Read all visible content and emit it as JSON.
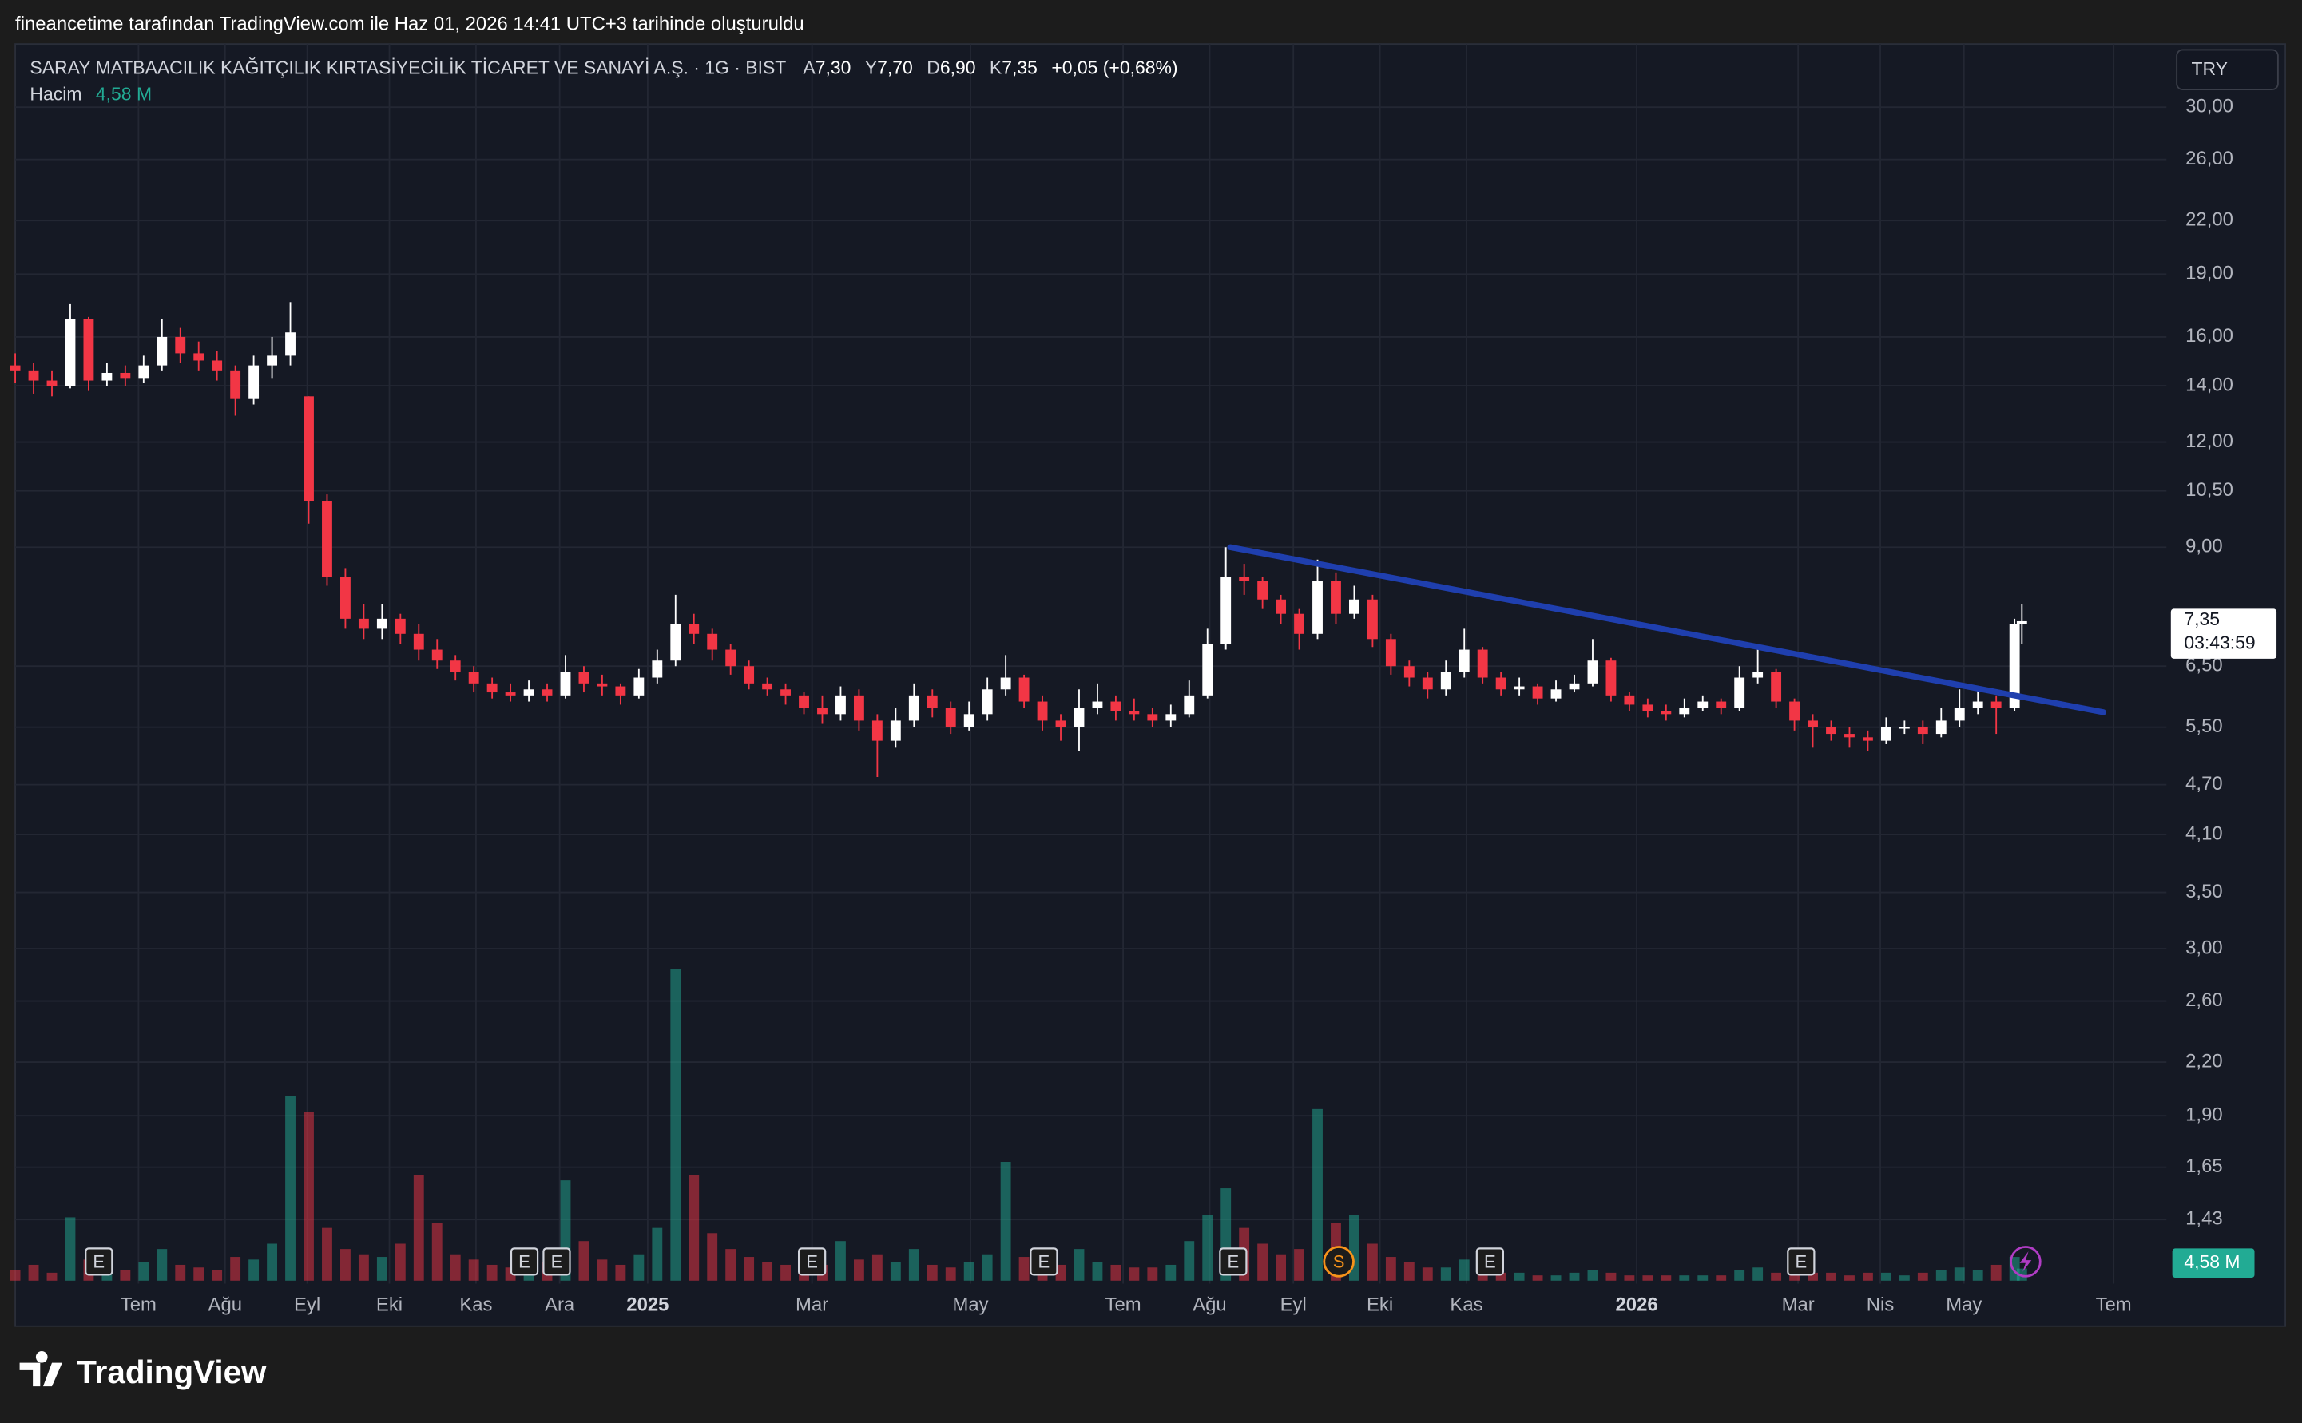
{
  "caption": "fineancetime tarafından TradingView.com ile Haz 01, 2026 14:41 UTC+3 tarihinde oluşturuldu",
  "brand": "TradingView",
  "chart_data": {
    "type": "candlestick",
    "title": "SARAY MATBAACILIK KAĞITÇILIK KIRTASİYECİLİK TİCARET VE SANAYİ A.Ş. · 1G · BIST",
    "legend": [
      {
        "key": "A",
        "value": "7,30"
      },
      {
        "key": "Y",
        "value": "7,70"
      },
      {
        "key": "D",
        "value": "6,90"
      },
      {
        "key": "K",
        "value": "7,35"
      }
    ],
    "change": "+0,05 (+0,68%)",
    "volume_title": "Hacim",
    "volume_label": "4,58 M",
    "currency": "TRY",
    "countdown": "03:43:59",
    "log_scale": true,
    "grid": true,
    "up_color": "#ffffff",
    "down_color": "#f23645",
    "volume_up_color": "#22ab94",
    "volume_down_color": "#f23645",
    "xlim": [
      0,
      586.4
    ],
    "ylim": [
      1.2,
      35.66
    ],
    "vlim": [
      0,
      150
    ],
    "xticks": [
      {
        "value": 33.6,
        "label": "Tem"
      },
      {
        "value": 57.2,
        "label": "Ağu"
      },
      {
        "value": 79.6,
        "label": "Eyl"
      },
      {
        "value": 102,
        "label": "Eki"
      },
      {
        "value": 125.6,
        "label": "Kas"
      },
      {
        "value": 148.4,
        "label": "Ara"
      },
      {
        "value": 172.4,
        "label": "2025"
      },
      {
        "value": 217.2,
        "label": "Mar"
      },
      {
        "value": 260.4,
        "label": "May"
      },
      {
        "value": 302,
        "label": "Tem"
      },
      {
        "value": 325.6,
        "label": "Ağu"
      },
      {
        "value": 348.4,
        "label": "Eyl"
      },
      {
        "value": 372,
        "label": "Eki"
      },
      {
        "value": 395.6,
        "label": "Kas"
      },
      {
        "value": 442,
        "label": "2026"
      },
      {
        "value": 486,
        "label": "Mar"
      },
      {
        "value": 508.4,
        "label": "Nis"
      },
      {
        "value": 531.2,
        "label": "May"
      },
      {
        "value": 572,
        "label": "Tem"
      }
    ],
    "yticks": [
      {
        "value": 30,
        "label": "30,00"
      },
      {
        "value": 26,
        "label": "26,00"
      },
      {
        "value": 22,
        "label": "22,00"
      },
      {
        "value": 19,
        "label": "19,00"
      },
      {
        "value": 16,
        "label": "16,00"
      },
      {
        "value": 14,
        "label": "14,00"
      },
      {
        "value": 12,
        "label": "12,00"
      },
      {
        "value": 10.5,
        "label": "10,50"
      },
      {
        "value": 9,
        "label": "9,00"
      },
      {
        "value": 6.5,
        "label": "6,50"
      },
      {
        "value": 5.5,
        "label": "5,50"
      },
      {
        "value": 4.7,
        "label": "4,70"
      },
      {
        "value": 4.1,
        "label": "4,10"
      },
      {
        "value": 3.5,
        "label": "3,50"
      },
      {
        "value": 3,
        "label": "3,00"
      },
      {
        "value": 2.6,
        "label": "2,60"
      },
      {
        "value": 2.2,
        "label": "2,20"
      },
      {
        "value": 1.9,
        "label": "1,90"
      },
      {
        "value": 1.65,
        "label": "1,65"
      },
      {
        "value": 1.43,
        "label": "1,43"
      }
    ],
    "x": [
      0,
      5,
      10,
      15,
      20,
      25,
      30,
      35,
      40,
      45,
      50,
      55,
      60,
      65,
      70,
      75,
      80,
      85,
      90,
      95,
      100,
      105,
      110,
      115,
      120,
      125,
      130,
      135,
      140,
      145,
      150,
      155,
      160,
      165,
      170,
      175,
      180,
      185,
      190,
      195,
      200,
      205,
      210,
      215,
      220,
      225,
      230,
      235,
      240,
      245,
      250,
      255,
      260,
      265,
      270,
      275,
      280,
      285,
      290,
      295,
      300,
      305,
      310,
      315,
      320,
      325,
      330,
      335,
      340,
      345,
      350,
      355,
      360,
      365,
      370,
      375,
      380,
      385,
      390,
      395,
      400,
      405,
      410,
      415,
      420,
      425,
      430,
      435,
      440,
      445,
      450,
      455,
      460,
      465,
      470,
      475,
      480,
      485,
      490,
      495,
      500,
      505,
      510,
      515,
      520,
      525,
      530,
      535,
      540,
      545,
      547
    ],
    "open": [
      14.8,
      14.6,
      14.2,
      14.0,
      16.8,
      14.2,
      14.5,
      14.3,
      14.8,
      16.0,
      15.3,
      15.0,
      14.6,
      13.5,
      14.8,
      15.2,
      13.6,
      10.2,
      8.3,
      7.4,
      7.2,
      7.4,
      7.1,
      6.8,
      6.6,
      6.4,
      6.2,
      6.05,
      6.0,
      6.1,
      6.0,
      6.4,
      6.2,
      6.15,
      6.0,
      6.3,
      6.6,
      7.3,
      7.1,
      6.8,
      6.5,
      6.2,
      6.1,
      6.0,
      5.8,
      5.7,
      6.0,
      5.6,
      5.3,
      5.6,
      6.0,
      5.8,
      5.5,
      5.7,
      6.1,
      6.3,
      5.9,
      5.6,
      5.5,
      5.8,
      5.9,
      5.75,
      5.7,
      5.6,
      5.7,
      6.0,
      6.9,
      8.3,
      8.2,
      7.8,
      7.5,
      7.1,
      8.2,
      7.5,
      7.8,
      7.0,
      6.5,
      6.3,
      6.1,
      6.4,
      6.8,
      6.3,
      6.1,
      6.15,
      5.95,
      6.1,
      6.2,
      6.6,
      6.0,
      5.85,
      5.75,
      5.7,
      5.8,
      5.9,
      5.8,
      6.3,
      6.4,
      5.9,
      5.6,
      5.5,
      5.4,
      5.35,
      5.3,
      5.5,
      5.5,
      5.4,
      5.6,
      5.8,
      5.9,
      5.8,
      7.3
    ],
    "high": [
      15.3,
      14.9,
      14.6,
      17.5,
      16.9,
      14.9,
      14.8,
      15.2,
      16.8,
      16.4,
      15.8,
      15.4,
      14.8,
      15.2,
      16.0,
      17.6,
      13.6,
      10.4,
      8.5,
      7.7,
      7.7,
      7.5,
      7.3,
      7.0,
      6.7,
      6.5,
      6.3,
      6.2,
      6.25,
      6.2,
      6.7,
      6.5,
      6.35,
      6.2,
      6.45,
      6.8,
      7.9,
      7.5,
      7.2,
      6.9,
      6.6,
      6.3,
      6.2,
      6.05,
      6.0,
      6.15,
      6.1,
      5.7,
      5.8,
      6.2,
      6.1,
      5.9,
      5.9,
      6.3,
      6.7,
      6.35,
      6.0,
      5.7,
      6.1,
      6.2,
      6.0,
      5.95,
      5.8,
      5.85,
      6.25,
      7.2,
      9.0,
      8.6,
      8.3,
      7.9,
      7.6,
      8.7,
      8.4,
      8.1,
      7.9,
      7.1,
      6.6,
      6.4,
      6.6,
      7.2,
      6.85,
      6.4,
      6.3,
      6.2,
      6.25,
      6.35,
      7.0,
      6.65,
      6.05,
      5.95,
      5.85,
      5.95,
      6.0,
      5.95,
      6.5,
      6.9,
      6.45,
      5.95,
      5.7,
      5.6,
      5.5,
      5.45,
      5.65,
      5.6,
      5.6,
      5.8,
      6.1,
      6.15,
      6.0,
      7.4,
      7.7
    ],
    "low": [
      14.1,
      13.7,
      13.6,
      13.9,
      13.8,
      14.0,
      14.0,
      14.1,
      14.6,
      14.9,
      14.6,
      14.2,
      12.9,
      13.3,
      14.3,
      14.8,
      9.6,
      8.1,
      7.2,
      7.0,
      7.0,
      6.9,
      6.6,
      6.45,
      6.25,
      6.05,
      5.95,
      5.9,
      5.9,
      5.9,
      5.95,
      6.05,
      6.0,
      5.85,
      5.95,
      6.2,
      6.5,
      6.9,
      6.6,
      6.35,
      6.1,
      6.0,
      5.85,
      5.7,
      5.55,
      5.6,
      5.45,
      4.8,
      5.2,
      5.5,
      5.65,
      5.4,
      5.45,
      5.6,
      6.0,
      5.8,
      5.45,
      5.3,
      5.15,
      5.7,
      5.6,
      5.6,
      5.5,
      5.5,
      5.65,
      5.95,
      6.8,
      7.9,
      7.6,
      7.3,
      6.8,
      7.0,
      7.3,
      7.4,
      6.85,
      6.35,
      6.15,
      5.95,
      6.0,
      6.3,
      6.2,
      6.0,
      6.0,
      5.85,
      5.9,
      6.05,
      6.15,
      5.9,
      5.75,
      5.65,
      5.6,
      5.65,
      5.75,
      5.7,
      5.75,
      6.2,
      5.8,
      5.45,
      5.2,
      5.3,
      5.2,
      5.15,
      5.25,
      5.4,
      5.25,
      5.35,
      5.5,
      5.7,
      5.4,
      5.75,
      6.9
    ],
    "close": [
      14.6,
      14.2,
      14.0,
      16.8,
      14.2,
      14.5,
      14.3,
      14.8,
      16.0,
      15.3,
      15.0,
      14.6,
      13.5,
      14.8,
      15.2,
      16.2,
      10.2,
      8.3,
      7.4,
      7.2,
      7.4,
      7.1,
      6.8,
      6.6,
      6.4,
      6.2,
      6.05,
      6.0,
      6.1,
      6.0,
      6.4,
      6.2,
      6.15,
      6.0,
      6.3,
      6.6,
      7.3,
      7.1,
      6.8,
      6.5,
      6.2,
      6.1,
      6.0,
      5.8,
      5.7,
      6.0,
      5.6,
      5.3,
      5.6,
      6.0,
      5.8,
      5.5,
      5.7,
      6.1,
      6.3,
      5.9,
      5.6,
      5.5,
      5.8,
      5.9,
      5.75,
      5.7,
      5.6,
      5.7,
      6.0,
      6.9,
      8.3,
      8.2,
      7.8,
      7.5,
      7.1,
      8.2,
      7.5,
      7.8,
      7.0,
      6.5,
      6.3,
      6.1,
      6.4,
      6.8,
      6.3,
      6.1,
      6.15,
      5.95,
      6.1,
      6.2,
      6.6,
      6.0,
      5.85,
      5.75,
      5.7,
      5.8,
      5.9,
      5.8,
      6.3,
      6.4,
      5.9,
      5.6,
      5.5,
      5.4,
      5.35,
      5.3,
      5.5,
      5.5,
      5.4,
      5.6,
      5.8,
      5.9,
      5.8,
      7.3,
      7.35
    ],
    "volume": [
      4,
      6,
      3,
      24,
      8,
      5,
      4,
      7,
      12,
      6,
      5,
      4,
      9,
      8,
      14,
      70,
      64,
      20,
      12,
      10,
      9,
      14,
      40,
      22,
      10,
      8,
      6,
      5,
      12,
      7,
      38,
      15,
      8,
      6,
      10,
      20,
      118,
      40,
      18,
      12,
      9,
      7,
      6,
      5,
      6,
      15,
      8,
      10,
      7,
      12,
      6,
      5,
      7,
      10,
      45,
      9,
      8,
      6,
      12,
      7,
      6,
      5,
      5,
      6,
      15,
      25,
      35,
      20,
      14,
      10,
      12,
      65,
      22,
      25,
      14,
      9,
      7,
      5,
      5,
      8,
      5,
      3,
      3,
      2,
      2,
      3,
      4,
      3,
      2,
      2,
      2,
      2,
      2,
      2,
      4,
      5,
      3,
      5,
      3,
      3,
      2,
      3,
      3,
      2,
      3,
      4,
      5,
      4,
      6,
      9,
      4.58
    ],
    "trendline": {
      "x": [
        331.2,
        569.2
      ],
      "values": [
        9.0,
        5.73
      ],
      "color": "#1f3fae"
    },
    "events": [
      {
        "x": 22.8,
        "label": "E"
      },
      {
        "x": 138.8,
        "label": "E"
      },
      {
        "x": 147.6,
        "label": "E"
      },
      {
        "x": 217.2,
        "label": "E"
      },
      {
        "x": 280.4,
        "label": "E"
      },
      {
        "x": 332,
        "label": "E"
      },
      {
        "x": 360.8,
        "label": "S"
      },
      {
        "x": 402,
        "label": "E"
      },
      {
        "x": 486.8,
        "label": "E"
      }
    ]
  }
}
